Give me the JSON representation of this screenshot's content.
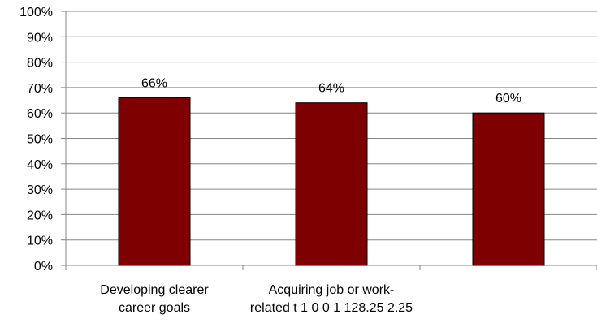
{
  "chart_data": {
    "type": "bar",
    "title": "",
    "xlabel": "",
    "ylabel": "",
    "ylim": [
      0,
      100
    ],
    "yticks": [
      "0%",
      "10%",
      "20%",
      "30%",
      "40%",
      "50%",
      "60%",
      "70%",
      "80%",
      "90%",
      "100%"
    ],
    "grid": true,
    "legend": "none",
    "categories": [
      [
        "Developing clearer",
        "career goals"
      ],
      [
        "Acquiring job or work-",
        "related t 1 0 0 1 128.25 2.25"
      ],
      [
        ""
      ]
    ],
    "values": [
      66,
      64,
      60
    ],
    "data_labels": [
      "66%",
      "64%",
      "60%"
    ],
    "bar_color": "#7f0000",
    "bar_stroke": "#000000",
    "grid_color": "#868686"
  }
}
